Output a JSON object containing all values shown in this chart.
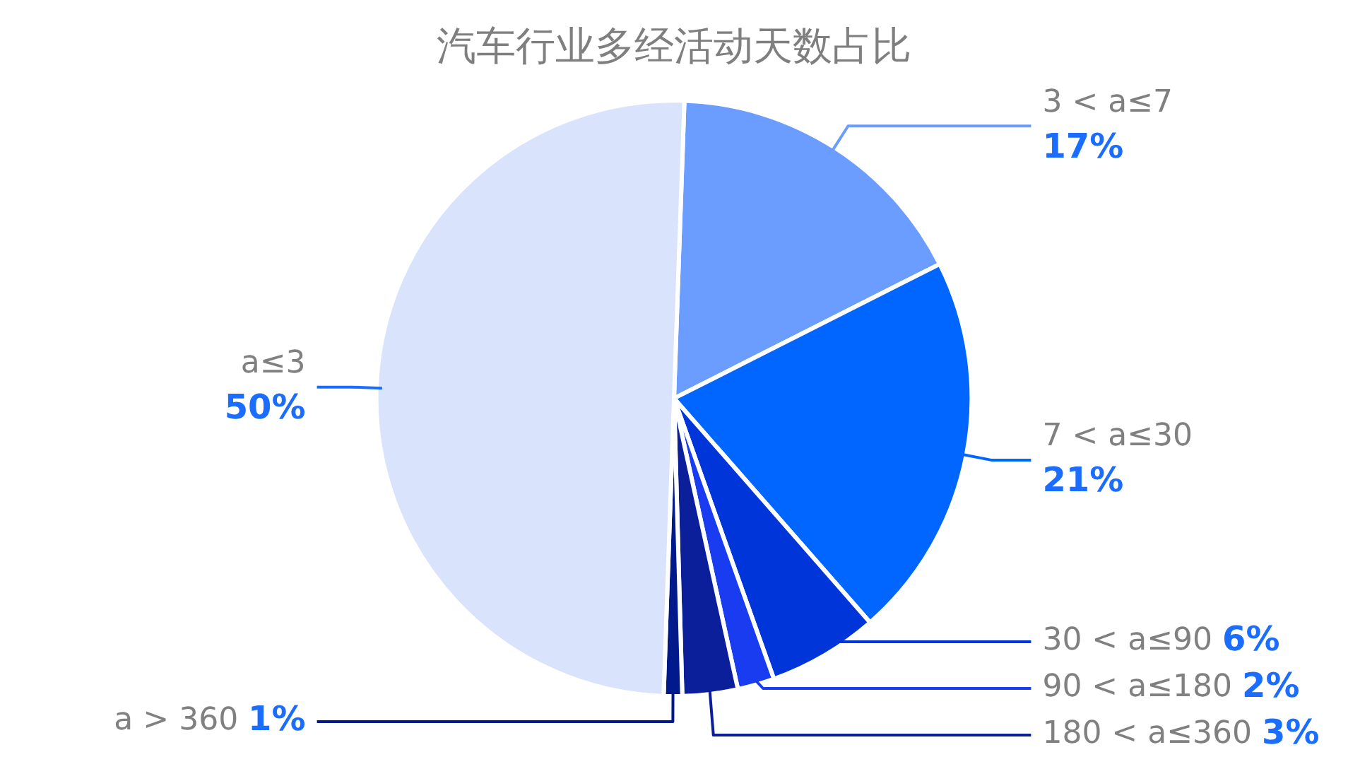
{
  "chart_data": {
    "type": "pie",
    "title": "汽车行业多经活动天数占比",
    "categories": [
      "3 < a≤7",
      "7 < a≤30",
      "30 < a≤90",
      "90 < a≤180",
      "180 < a≤360",
      "a > 360",
      "a≤3"
    ],
    "values": [
      17,
      21,
      6,
      2,
      3,
      1,
      50
    ],
    "value_labels": [
      "17%",
      "21%",
      "6%",
      "2%",
      "3%",
      "1%",
      "50%"
    ],
    "colors": [
      "#6b9cff",
      "#0066ff",
      "#0036d9",
      "#1a3cf0",
      "#0a1f99",
      "#001a8c",
      "#d9e3fb"
    ],
    "legend": false
  }
}
